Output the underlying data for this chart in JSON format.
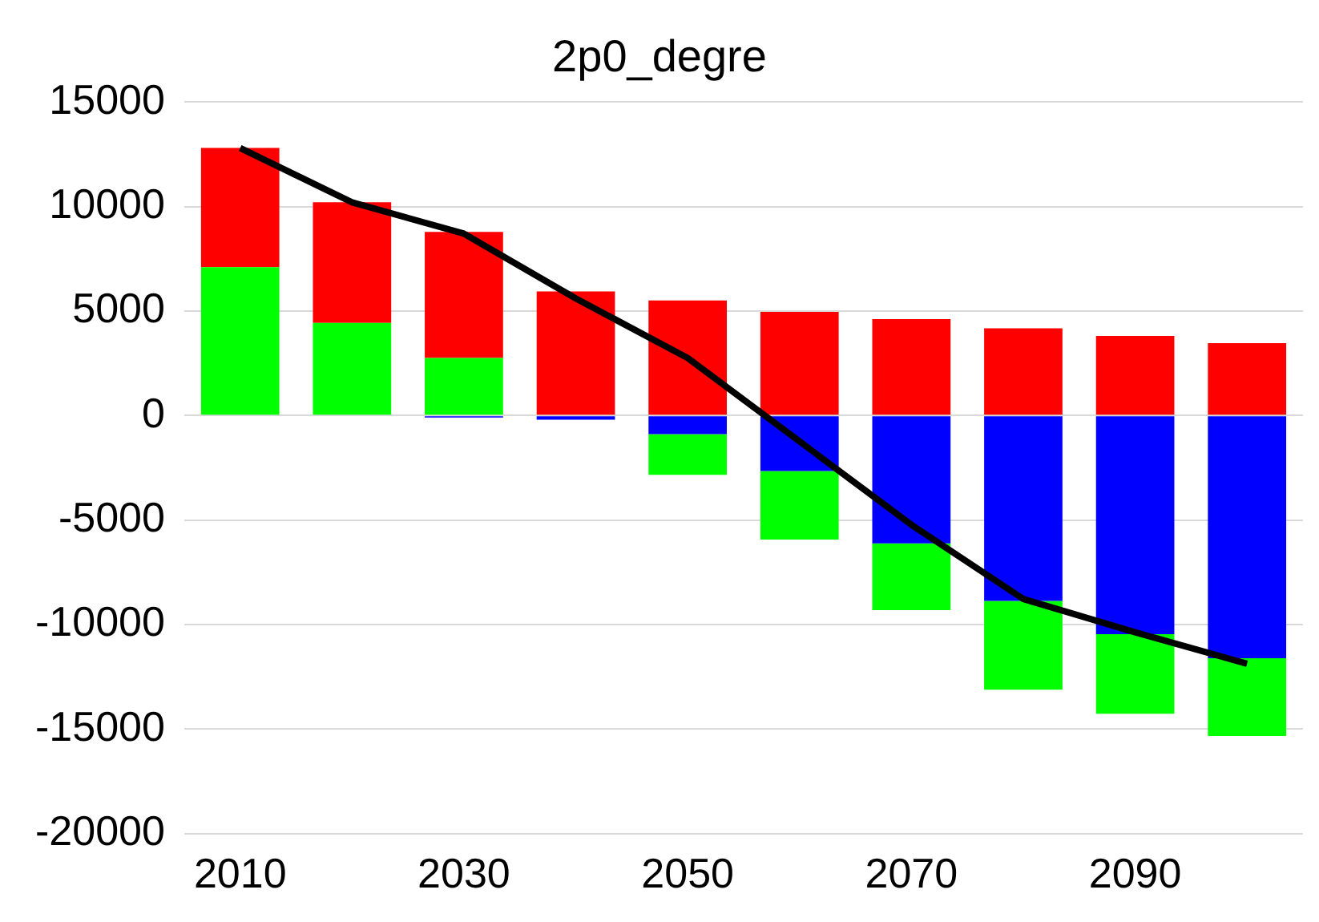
{
  "chart_data": {
    "type": "bar",
    "title": "2p0_degre",
    "stacked": true,
    "categories": [
      "2010",
      null,
      "2030",
      null,
      "2050",
      null,
      "2070",
      null,
      "2090",
      null
    ],
    "series": [
      {
        "color": "#0000ff",
        "values": [
          0,
          0,
          -100,
          -200,
          -890,
          -2660,
          -6120,
          -8870,
          -10460,
          -11610
        ]
      },
      {
        "color": "#00ff00",
        "values": [
          7100,
          4430,
          2750,
          0,
          -1950,
          -3280,
          -3190,
          -4250,
          -3810,
          -3730
        ]
      },
      {
        "color": "#ff0000",
        "values": [
          5700,
          5770,
          6030,
          5940,
          5500,
          4960,
          4610,
          4170,
          3810,
          3460
        ]
      },
      {
        "type": "line",
        "color": "#000000",
        "values": [
          12800,
          10200,
          8700,
          5600,
          2750,
          -1240,
          -5230,
          -8780,
          -10370,
          -11880
        ]
      }
    ],
    "ylim": [
      -20000,
      15000
    ],
    "yticks": [
      -20000,
      -15000,
      -10000,
      -5000,
      0,
      5000,
      10000,
      15000
    ],
    "grid": "y",
    "legend": false
  }
}
